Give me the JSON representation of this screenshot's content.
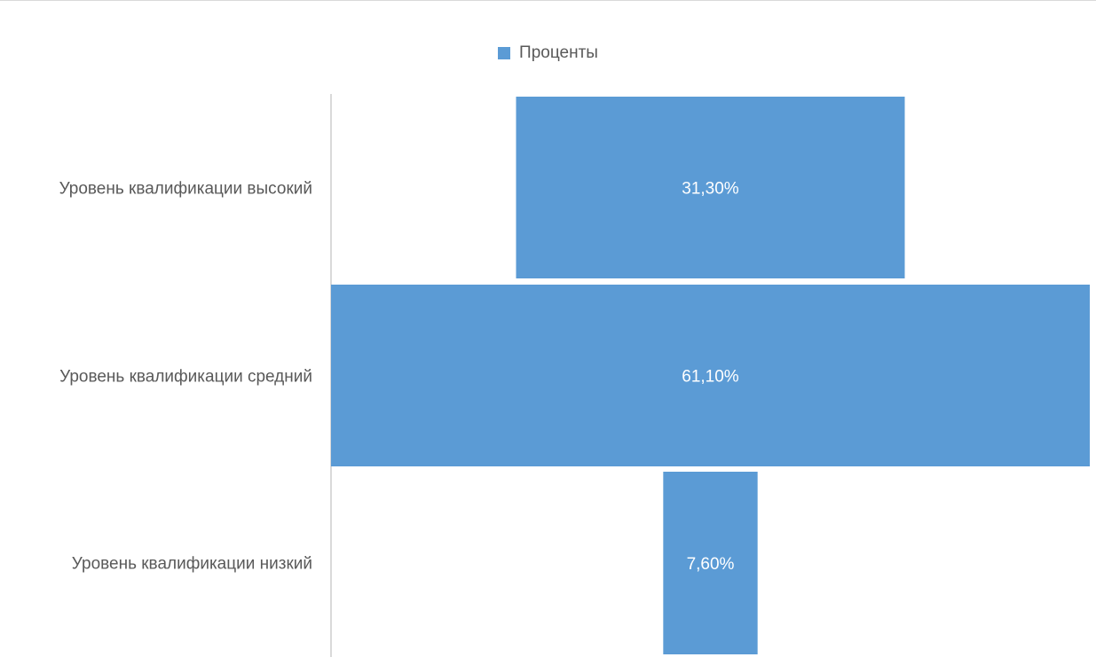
{
  "chart_data": {
    "type": "bar",
    "subtype": "funnel",
    "orientation": "horizontal",
    "categories": [
      "Уровень квалификации высокий",
      "Уровень квалификации средний",
      "Уровень квалификации низкий"
    ],
    "series": [
      {
        "name": "Проценты",
        "values": [
          31.3,
          61.1,
          7.6
        ],
        "color": "#5b9bd5"
      }
    ],
    "data_labels": [
      "31,30%",
      "61,10%",
      "7,60%"
    ],
    "legend": {
      "position": "top",
      "entries": [
        "Проценты"
      ]
    },
    "grid": false,
    "colors": {
      "bar": "#5b9bd5",
      "axis_line": "#d9d9d9",
      "text": "#595959",
      "bar_text": "#ffffff"
    }
  }
}
